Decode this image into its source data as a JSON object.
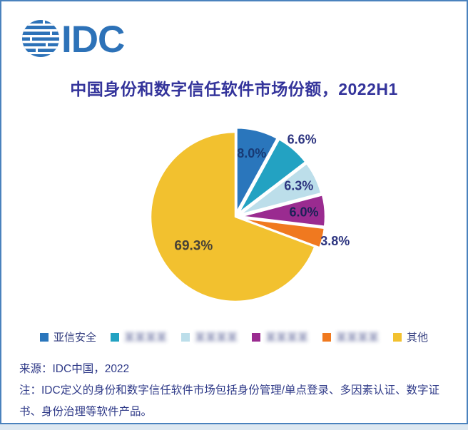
{
  "logo": {
    "text": "IDC",
    "color": "#2d72b8"
  },
  "chart_data": {
    "type": "pie",
    "title": "中国身份和数字信任软件市场份额，2022H1",
    "start_angle_deg": 0,
    "direction": "clockwise",
    "legend_position": "bottom",
    "slices": [
      {
        "label": "亚信安全",
        "blurred": false,
        "value": 8.0,
        "display": "8.0%",
        "color": "#2a76bc",
        "label_color": "#173a75",
        "label_radius": 0.72,
        "label_size": 18,
        "explode": 6
      },
      {
        "label": "某某某某",
        "blurred": true,
        "value": 6.6,
        "display": "6.6%",
        "color": "#23a2c2",
        "label_color": "#2d3580",
        "label_radius": 1.15,
        "label_size": 18,
        "explode": 6
      },
      {
        "label": "某某某某",
        "blurred": true,
        "value": 6.3,
        "display": "6.3%",
        "color": "#bcdeea",
        "label_color": "#2d3580",
        "label_radius": 0.78,
        "label_size": 18,
        "explode": 6
      },
      {
        "label": "某某某某",
        "blurred": true,
        "value": 6.0,
        "display": "6.0%",
        "color": "#9a2b90",
        "label_color": "#1b2157",
        "label_radius": 0.75,
        "label_size": 18,
        "explode": 7
      },
      {
        "label": "某某某某",
        "blurred": true,
        "value": 3.8,
        "display": "3.8%",
        "color": "#f0791f",
        "label_color": "#2d3580",
        "label_radius": 1.15,
        "label_size": 18,
        "explode": 7
      },
      {
        "label": "其他",
        "blurred": false,
        "value": 69.3,
        "display": "69.3%",
        "color": "#f2c12f",
        "label_color": "#474136",
        "label_radius": 0.6,
        "label_size": 19,
        "explode": 0
      }
    ]
  },
  "footer": {
    "source": "来源：IDC中国，2022",
    "note": "注：IDC定义的身份和数字信任软件市场包括身份管理/单点登录、多因素认证、数字证书、身份治理等软件产品。"
  }
}
